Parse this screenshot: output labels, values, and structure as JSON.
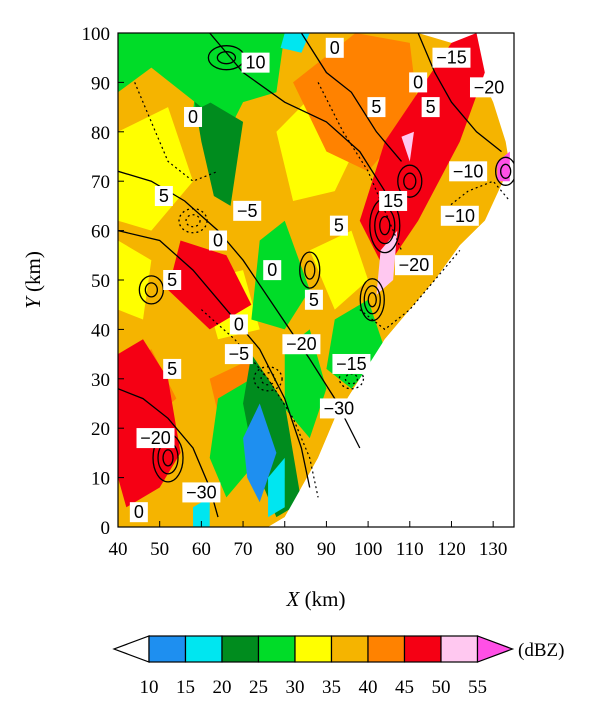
{
  "chart_data": {
    "type": "heatmap",
    "title": "",
    "x_axis": {
      "label_var": "X",
      "label_unit": " (km)",
      "range": [
        40,
        135
      ],
      "ticks": [
        40,
        50,
        60,
        70,
        80,
        90,
        100,
        110,
        120,
        130
      ]
    },
    "y_axis": {
      "label_var": "Y",
      "label_unit": " (km)",
      "range": [
        0,
        100
      ],
      "ticks": [
        0,
        10,
        20,
        30,
        40,
        50,
        60,
        70,
        80,
        90,
        100
      ]
    },
    "colorbar": {
      "unit": "(dBZ)",
      "levels": [
        10,
        15,
        20,
        25,
        30,
        35,
        40,
        45,
        50,
        55
      ],
      "colors": [
        "#ffffff",
        "#1e8ff0",
        "#00e6f0",
        "#008c1e",
        "#00dc28",
        "#ffff00",
        "#f5b400",
        "#ff8200",
        "#f50014",
        "#ffc8f0",
        "#ff50e6"
      ]
    },
    "reflectivity_regions": [
      {
        "level": 45,
        "color": "#f50014",
        "points": [
          [
            40,
            35
          ],
          [
            46,
            38
          ],
          [
            52,
            30
          ],
          [
            55,
            15
          ],
          [
            50,
            8
          ],
          [
            42,
            4
          ],
          [
            40,
            10
          ]
        ]
      },
      {
        "level": 45,
        "color": "#f50014",
        "points": [
          [
            55,
            58
          ],
          [
            66,
            55
          ],
          [
            72,
            45
          ],
          [
            62,
            40
          ],
          [
            52,
            48
          ]
        ]
      },
      {
        "level": 45,
        "color": "#f50014",
        "points": [
          [
            98,
            62
          ],
          [
            104,
            78
          ],
          [
            112,
            88
          ],
          [
            120,
            98
          ],
          [
            126,
            100
          ],
          [
            128,
            92
          ],
          [
            122,
            78
          ],
          [
            112,
            62
          ],
          [
            104,
            52
          ]
        ]
      },
      {
        "level": 50,
        "color": "#ffc8f0",
        "points": [
          [
            103,
            56
          ],
          [
            107,
            60
          ],
          [
            106,
            50
          ],
          [
            102,
            47
          ]
        ]
      },
      {
        "level": 50,
        "color": "#ffc8f0",
        "points": [
          [
            108,
            79
          ],
          [
            111,
            80
          ],
          [
            110,
            74
          ]
        ]
      },
      {
        "level": 25,
        "color": "#008c1e",
        "points": [
          [
            58,
            88
          ],
          [
            70,
            82
          ],
          [
            67,
            65
          ],
          [
            63,
            67
          ],
          [
            60,
            78
          ]
        ]
      },
      {
        "level": 25,
        "color": "#008c1e",
        "points": [
          [
            72,
            35
          ],
          [
            80,
            25
          ],
          [
            84,
            5
          ],
          [
            78,
            2
          ],
          [
            73,
            12
          ],
          [
            70,
            25
          ]
        ]
      },
      {
        "level": 15,
        "color": "#1e8ff0",
        "points": [
          [
            70,
            18
          ],
          [
            74,
            25
          ],
          [
            78,
            15
          ],
          [
            74,
            5
          ],
          [
            71,
            10
          ]
        ]
      },
      {
        "level": 30,
        "color": "#00dc28",
        "points": [
          [
            40,
            100
          ],
          [
            60,
            100
          ],
          [
            72,
            90
          ],
          [
            60,
            85
          ],
          [
            48,
            93
          ],
          [
            40,
            88
          ]
        ]
      }
    ],
    "contour_labels": [
      {
        "text": "10",
        "x": 73,
        "y": 94
      },
      {
        "text": "0",
        "x": 92,
        "y": 97
      },
      {
        "text": "−15",
        "x": 120,
        "y": 95
      },
      {
        "text": "0",
        "x": 112,
        "y": 90
      },
      {
        "text": "−20",
        "x": 129,
        "y": 89
      },
      {
        "text": "5",
        "x": 102,
        "y": 85
      },
      {
        "text": "5",
        "x": 115,
        "y": 85
      },
      {
        "text": "0",
        "x": 58,
        "y": 83
      },
      {
        "text": "−10",
        "x": 124,
        "y": 72
      },
      {
        "text": "5",
        "x": 51,
        "y": 67
      },
      {
        "text": "15",
        "x": 106,
        "y": 66
      },
      {
        "text": "−10",
        "x": 122,
        "y": 63
      },
      {
        "text": "−5",
        "x": 71,
        "y": 64
      },
      {
        "text": "5",
        "x": 93,
        "y": 61
      },
      {
        "text": "0",
        "x": 64,
        "y": 58
      },
      {
        "text": "−20",
        "x": 111,
        "y": 53
      },
      {
        "text": "5",
        "x": 53,
        "y": 50
      },
      {
        "text": "0",
        "x": 77,
        "y": 52
      },
      {
        "text": "5",
        "x": 87,
        "y": 46
      },
      {
        "text": "0",
        "x": 69,
        "y": 41
      },
      {
        "text": "−20",
        "x": 84,
        "y": 37
      },
      {
        "text": "−5",
        "x": 69,
        "y": 35
      },
      {
        "text": "5",
        "x": 53,
        "y": 32
      },
      {
        "text": "−15",
        "x": 96,
        "y": 33
      },
      {
        "text": "−30",
        "x": 93,
        "y": 24
      },
      {
        "text": "−20",
        "x": 49,
        "y": 18
      },
      {
        "text": "−30",
        "x": 60,
        "y": 7
      },
      {
        "text": "0",
        "x": 45,
        "y": 3
      }
    ]
  }
}
